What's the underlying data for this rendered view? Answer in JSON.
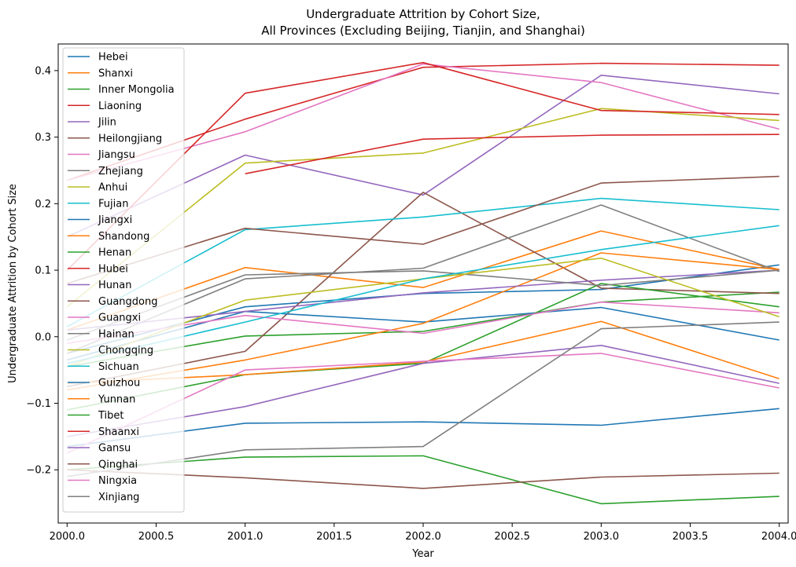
{
  "chart_data": {
    "type": "line",
    "title_line1": "Undergraduate Attrition by Cohort Size,",
    "title_line2": "All Provinces (Excluding Beijing, Tianjin, and Shanghai)",
    "xlabel": "Year",
    "ylabel": "Undergraduate Attrition by Cohort Size",
    "xlim": [
      1999.95,
      2004.05
    ],
    "ylim": [
      -0.28,
      0.44
    ],
    "x_ticks": [
      2000.0,
      2000.5,
      2001.0,
      2001.5,
      2002.0,
      2002.5,
      2003.0,
      2003.5,
      2004.0
    ],
    "x_tick_labels": [
      "2000.0",
      "2000.5",
      "2001.0",
      "2001.5",
      "2002.0",
      "2002.5",
      "2003.0",
      "2003.5",
      "2004.0"
    ],
    "y_ticks": [
      -0.2,
      -0.1,
      0.0,
      0.1,
      0.2,
      0.3,
      0.4
    ],
    "y_tick_labels": [
      "−0.2",
      "−0.1",
      "0.0",
      "0.1",
      "0.2",
      "0.3",
      "0.4"
    ],
    "grid": false,
    "legend_position": "upper-left",
    "x": [
      2000,
      2001,
      2002,
      2003,
      2004
    ],
    "series": [
      {
        "name": "Hebei",
        "color": "#1f77b4",
        "values": [
          -0.025,
          0.045,
          0.065,
          0.071,
          0.108
        ]
      },
      {
        "name": "Shanxi",
        "color": "#ff7f0e",
        "values": [
          0.01,
          0.104,
          0.074,
          0.159,
          0.101
        ]
      },
      {
        "name": "Inner Mongolia",
        "color": "#2ca02c",
        "values": [
          -0.045,
          0.001,
          0.008,
          0.052,
          0.067
        ]
      },
      {
        "name": "Liaoning",
        "color": "#d62728",
        "values": [
          0.235,
          0.327,
          0.405,
          0.411,
          0.408
        ]
      },
      {
        "name": "Jilin",
        "color": "#9467bd",
        "values": [
          0.15,
          0.273,
          0.213,
          0.393,
          0.365
        ]
      },
      {
        "name": "Heilongjiang",
        "color": "#8c564b",
        "values": [
          -0.075,
          -0.022,
          0.217,
          0.073,
          0.065
        ]
      },
      {
        "name": "Jiangsu",
        "color": "#e377c2",
        "values": [
          0.235,
          0.308,
          0.41,
          0.382,
          0.312
        ]
      },
      {
        "name": "Zhejiang",
        "color": "#7f7f7f",
        "values": [
          -0.025,
          0.087,
          0.103,
          0.198,
          0.098
        ]
      },
      {
        "name": "Anhui",
        "color": "#bcbd22",
        "values": [
          0.045,
          0.261,
          0.276,
          0.343,
          0.325
        ]
      },
      {
        "name": "Fujian",
        "color": "#17becf",
        "values": [
          0.015,
          0.161,
          0.18,
          0.208,
          0.191
        ]
      },
      {
        "name": "Jiangxi",
        "color": "#1f77b4",
        "values": [
          -0.035,
          0.038,
          0.022,
          0.044,
          -0.005
        ]
      },
      {
        "name": "Shandong",
        "color": "#ff7f0e",
        "values": [
          -0.08,
          -0.035,
          0.02,
          0.126,
          0.101
        ]
      },
      {
        "name": "Henan",
        "color": "#2ca02c",
        "values": [
          -0.11,
          -0.057,
          -0.04,
          0.08,
          0.045
        ]
      },
      {
        "name": "Hubei",
        "color": "#d62728",
        "values": [
          0.1,
          0.366,
          0.412,
          0.34,
          0.334
        ]
      },
      {
        "name": "Hunan",
        "color": "#9467bd",
        "values": [
          0.01,
          0.038,
          0.066,
          0.085,
          0.1
        ]
      },
      {
        "name": "Guangdong",
        "color": "#8c564b",
        "values": [
          0.08,
          0.163,
          0.139,
          0.231,
          0.241
        ]
      },
      {
        "name": "Guangxi",
        "color": "#e377c2",
        "values": [
          -0.01,
          0.032,
          0.005,
          0.052,
          0.036
        ]
      },
      {
        "name": "Hainan",
        "color": "#7f7f7f",
        "values": [
          -0.005,
          0.093,
          0.099,
          0.077,
          0.1
        ]
      },
      {
        "name": "Chongqing",
        "color": "#bcbd22",
        "values": [
          -0.045,
          0.055,
          0.087,
          0.118,
          0.03
        ]
      },
      {
        "name": "Sichuan",
        "color": "#17becf",
        "values": [
          -0.04,
          0.022,
          0.087,
          0.131,
          0.167
        ]
      },
      {
        "name": "Guizhou",
        "color": "#1f77b4",
        "values": [
          -0.165,
          -0.13,
          -0.128,
          -0.133,
          -0.108
        ]
      },
      {
        "name": "Yunnan",
        "color": "#ff7f0e",
        "values": [
          -0.07,
          -0.057,
          -0.038,
          0.023,
          -0.063
        ]
      },
      {
        "name": "Tibet",
        "color": "#2ca02c",
        "values": [
          -0.2,
          -0.181,
          -0.179,
          -0.251,
          -0.24
        ]
      },
      {
        "name": "Shaanxi",
        "color": "#d62728",
        "values": [
          null,
          0.245,
          0.297,
          0.303,
          0.304
        ]
      },
      {
        "name": "Gansu",
        "color": "#9467bd",
        "values": [
          -0.15,
          -0.105,
          -0.04,
          -0.013,
          -0.07
        ]
      },
      {
        "name": "Qinghai",
        "color": "#8c564b",
        "values": [
          -0.2,
          -0.212,
          -0.228,
          -0.211,
          -0.205
        ]
      },
      {
        "name": "Ningxia",
        "color": "#e377c2",
        "values": [
          -0.175,
          -0.05,
          -0.037,
          -0.025,
          -0.077
        ]
      },
      {
        "name": "Xinjiang",
        "color": "#7f7f7f",
        "values": [
          -0.21,
          -0.17,
          -0.165,
          0.012,
          0.022
        ]
      }
    ]
  }
}
